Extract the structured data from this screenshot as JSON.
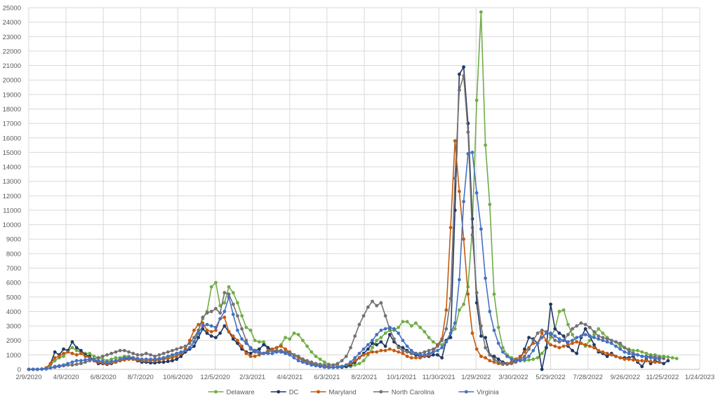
{
  "chart_data": {
    "type": "line",
    "title": "",
    "xlabel": "",
    "ylabel": "",
    "x_axis": {
      "type": "date",
      "min": "2020-02-09",
      "max": "2023-01-24",
      "ticks": [
        "2020-02-09",
        "2020-04-09",
        "2020-06-08",
        "2020-08-07",
        "2020-10-06",
        "2020-12-05",
        "2021-02-03",
        "2021-04-04",
        "2021-06-03",
        "2021-08-02",
        "2021-10-01",
        "2021-11-30",
        "2022-01-29",
        "2022-03-30",
        "2022-05-29",
        "2022-07-28",
        "2022-09-26",
        "2022-11-25",
        "2023-01-24"
      ],
      "tick_labels": [
        "2/9/2020",
        "4/9/2020",
        "6/8/2020",
        "8/7/2020",
        "10/6/2020",
        "12/5/2020",
        "2/3/2021",
        "4/4/2021",
        "6/3/2021",
        "8/2/2021",
        "10/1/2021",
        "11/30/2021",
        "1/29/2022",
        "3/30/2022",
        "5/29/2022",
        "7/28/2022",
        "9/26/2022",
        "11/25/2022",
        "1/24/2023"
      ]
    },
    "y_axis": {
      "min": 0,
      "max": 25000,
      "step": 1000,
      "tick_labels": [
        "0",
        "1000",
        "2000",
        "3000",
        "4000",
        "5000",
        "6000",
        "7000",
        "8000",
        "9000",
        "10000",
        "11000",
        "12000",
        "13000",
        "14000",
        "15000",
        "16000",
        "17000",
        "18000",
        "19000",
        "20000",
        "21000",
        "22000",
        "23000",
        "24000",
        "25000"
      ]
    },
    "grid": true,
    "legend_position": "bottom",
    "x_start": "2020-02-09",
    "x_step_days": 7,
    "series": [
      {
        "name": "Delaware",
        "color": "#70AD47",
        "values": [
          0,
          0,
          0,
          20,
          80,
          300,
          600,
          800,
          900,
          1300,
          1500,
          1300,
          1200,
          1100,
          1100,
          900,
          800,
          700,
          600,
          700,
          800,
          800,
          900,
          900,
          800,
          700,
          600,
          600,
          600,
          650,
          700,
          800,
          850,
          900,
          1000,
          1100,
          1200,
          1500,
          1900,
          2700,
          3500,
          4000,
          5700,
          6000,
          4400,
          4600,
          5700,
          5300,
          4600,
          3700,
          2900,
          2700,
          2000,
          1900,
          1900,
          1500,
          1400,
          1500,
          1700,
          2200,
          2100,
          2500,
          2400,
          2000,
          1600,
          1200,
          900,
          700,
          500,
          350,
          300,
          250,
          200,
          180,
          200,
          300,
          400,
          600,
          1000,
          1500,
          2000,
          2200,
          2500,
          2700,
          2700,
          2900,
          3300,
          3300,
          3000,
          3200,
          2900,
          2600,
          2200,
          1900,
          1700,
          1700,
          2000,
          2500,
          2800,
          4100,
          4500,
          5700,
          9800,
          18600,
          24700,
          15500,
          11400,
          5200,
          2900,
          1500,
          1000,
          800,
          700,
          650,
          600,
          650,
          700,
          800,
          1100,
          1500,
          2200,
          2800,
          4000,
          4100,
          3100,
          2400,
          1900,
          1800,
          1600,
          2000,
          2400,
          2800,
          2500,
          2200,
          2000,
          1900,
          1600,
          1500,
          1400,
          1300,
          1300,
          1200,
          1100,
          1000,
          1000,
          900,
          900,
          850,
          800,
          750
        ]
      },
      {
        "name": "DC",
        "color": "#203864",
        "values": [
          0,
          0,
          0,
          20,
          100,
          400,
          1200,
          1000,
          1400,
          1300,
          1900,
          1500,
          1300,
          1000,
          900,
          600,
          400,
          400,
          350,
          400,
          500,
          600,
          700,
          800,
          700,
          600,
          500,
          500,
          450,
          450,
          500,
          500,
          550,
          600,
          700,
          900,
          1200,
          1400,
          1600,
          2200,
          2800,
          2500,
          2300,
          2200,
          2500,
          3000,
          2600,
          2100,
          1800,
          1400,
          1200,
          1100,
          1300,
          1400,
          1700,
          1500,
          1300,
          1200,
          1200,
          1200,
          1200,
          1000,
          900,
          700,
          500,
          400,
          300,
          250,
          200,
          180,
          150,
          150,
          150,
          200,
          300,
          500,
          800,
          1100,
          1400,
          1800,
          1700,
          1900,
          1600,
          2400,
          1900,
          1600,
          1500,
          1300,
          1100,
          1000,
          900,
          900,
          900,
          1000,
          1000,
          800,
          2000,
          2200,
          11000,
          20400,
          20900,
          17000,
          10400,
          4600,
          2300,
          2200,
          1000,
          900,
          700,
          500,
          400,
          500,
          600,
          700,
          1400,
          2200,
          2100,
          1800,
          0,
          1500,
          4500,
          2800,
          2500,
          2300,
          1600,
          1300,
          1100,
          2200,
          2800,
          2300,
          1700,
          1200,
          1100,
          900,
          1100,
          900,
          800,
          800,
          800,
          900,
          500,
          200,
          700,
          400,
          600,
          500,
          400,
          600
        ]
      },
      {
        "name": "Maryland",
        "color": "#C55A11",
        "values": [
          0,
          0,
          0,
          20,
          100,
          400,
          800,
          900,
          1100,
          1200,
          1100,
          1000,
          1100,
          900,
          800,
          600,
          500,
          450,
          400,
          450,
          500,
          600,
          650,
          700,
          700,
          650,
          600,
          600,
          600,
          600,
          650,
          700,
          750,
          800,
          900,
          1100,
          1400,
          2000,
          2700,
          3100,
          3200,
          2700,
          2600,
          2700,
          3500,
          3600,
          2600,
          2300,
          2000,
          1600,
          1100,
          900,
          900,
          1000,
          1100,
          1300,
          1400,
          1500,
          1600,
          1400,
          1200,
          1000,
          800,
          600,
          500,
          400,
          300,
          250,
          200,
          150,
          150,
          150,
          200,
          300,
          400,
          600,
          800,
          1000,
          1100,
          1200,
          1200,
          1300,
          1300,
          1400,
          1300,
          1200,
          1100,
          900,
          800,
          800,
          800,
          900,
          1000,
          1200,
          1700,
          2100,
          4100,
          9800,
          15800,
          12300,
          9000,
          5200,
          2500,
          1400,
          900,
          800,
          600,
          500,
          400,
          350,
          400,
          500,
          700,
          900,
          1200,
          1500,
          1800,
          1800,
          2500,
          2000,
          1700,
          1600,
          1500,
          1600,
          1700,
          1800,
          1900,
          1800,
          1700,
          1600,
          1500,
          1300,
          1200,
          1100,
          1000,
          900,
          800,
          700,
          700,
          650,
          600,
          600,
          600,
          550,
          500,
          500
        ]
      },
      {
        "name": "North Carolina",
        "color": "#767171",
        "values": [
          0,
          0,
          0,
          20,
          50,
          100,
          150,
          200,
          250,
          300,
          300,
          350,
          400,
          500,
          600,
          700,
          800,
          900,
          1000,
          1100,
          1200,
          1300,
          1300,
          1200,
          1100,
          1000,
          1000,
          1100,
          1000,
          900,
          1000,
          1100,
          1200,
          1300,
          1400,
          1500,
          1600,
          1800,
          2200,
          2700,
          3600,
          3900,
          4000,
          4200,
          3900,
          5300,
          5200,
          4500,
          3700,
          2800,
          2000,
          1400,
          1200,
          1100,
          1100,
          1200,
          1300,
          1300,
          1300,
          1200,
          1100,
          1000,
          900,
          700,
          600,
          500,
          400,
          350,
          300,
          300,
          300,
          400,
          600,
          900,
          1500,
          2300,
          3100,
          3700,
          4300,
          4700,
          4400,
          4600,
          3700,
          2800,
          2100,
          1500,
          1300,
          1200,
          1100,
          1100,
          1100,
          1200,
          1300,
          1400,
          1600,
          2000,
          2800,
          4900,
          13200,
          19300,
          20300,
          16400,
          9300,
          5300,
          3000,
          1500,
          1000,
          700,
          500,
          400,
          350,
          400,
          500,
          700,
          900,
          1400,
          2000,
          2500,
          2700,
          2600,
          2400,
          2000,
          1900,
          2000,
          2400,
          2800,
          3000,
          3200,
          3100,
          2900,
          2600,
          2300,
          2200,
          2100,
          2000,
          1900,
          1800,
          1500,
          1300,
          1100,
          1000,
          900,
          900,
          900,
          850,
          800,
          750
        ]
      },
      {
        "name": "Virginia",
        "color": "#4472C4",
        "values": [
          0,
          0,
          0,
          10,
          30,
          100,
          200,
          250,
          300,
          400,
          500,
          600,
          600,
          650,
          700,
          650,
          600,
          550,
          500,
          550,
          600,
          700,
          800,
          800,
          800,
          750,
          700,
          700,
          700,
          700,
          750,
          800,
          900,
          1000,
          1100,
          1200,
          1300,
          1500,
          1900,
          2500,
          3000,
          3100,
          3000,
          2900,
          3500,
          4000,
          5000,
          3800,
          2700,
          2100,
          1800,
          1500,
          1300,
          1200,
          1100,
          1100,
          1100,
          1200,
          1200,
          1100,
          1000,
          800,
          600,
          500,
          400,
          300,
          250,
          200,
          150,
          130,
          130,
          150,
          200,
          300,
          500,
          800,
          1100,
          1400,
          1700,
          2000,
          2400,
          2700,
          2800,
          2900,
          2800,
          2500,
          2000,
          1600,
          1300,
          1100,
          1000,
          1000,
          1100,
          1200,
          1300,
          1500,
          1900,
          2500,
          3200,
          6200,
          11600,
          14900,
          15000,
          12200,
          9700,
          6300,
          4000,
          2700,
          1800,
          1200,
          900,
          700,
          600,
          600,
          700,
          900,
          1300,
          1800,
          2200,
          2500,
          2500,
          2300,
          2100,
          2000,
          1900,
          2000,
          2200,
          2300,
          2400,
          2300,
          2200,
          2100,
          2000,
          1900,
          1800,
          1600,
          1400,
          1200,
          1100,
          1000,
          1000,
          900,
          850,
          800,
          750,
          700
        ]
      }
    ]
  }
}
